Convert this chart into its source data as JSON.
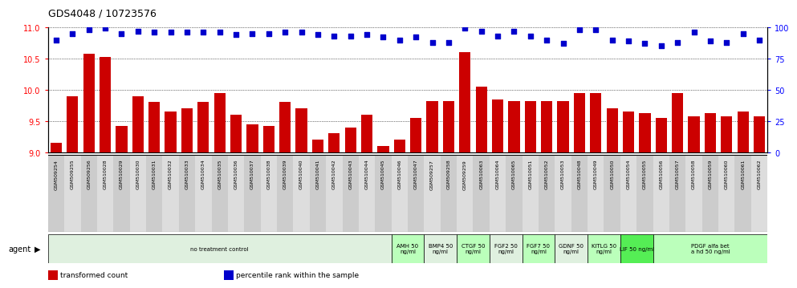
{
  "title": "GDS4048 / 10723576",
  "samples": [
    "GSM509254",
    "GSM509255",
    "GSM509256",
    "GSM510028",
    "GSM510029",
    "GSM510030",
    "GSM510031",
    "GSM510032",
    "GSM510033",
    "GSM510034",
    "GSM510035",
    "GSM510036",
    "GSM510037",
    "GSM510038",
    "GSM510039",
    "GSM510040",
    "GSM510041",
    "GSM510042",
    "GSM510043",
    "GSM510044",
    "GSM510045",
    "GSM510046",
    "GSM510047",
    "GSM509257",
    "GSM509258",
    "GSM509259",
    "GSM510063",
    "GSM510064",
    "GSM510065",
    "GSM510051",
    "GSM510052",
    "GSM510053",
    "GSM510048",
    "GSM510049",
    "GSM510050",
    "GSM510054",
    "GSM510055",
    "GSM510056",
    "GSM510057",
    "GSM510058",
    "GSM510059",
    "GSM510060",
    "GSM510061",
    "GSM510062"
  ],
  "bar_values": [
    9.15,
    9.9,
    10.58,
    10.52,
    9.42,
    9.9,
    9.8,
    9.65,
    9.7,
    9.8,
    9.95,
    9.6,
    9.45,
    9.42,
    9.8,
    9.7,
    9.2,
    9.3,
    9.4,
    9.6,
    9.1,
    9.2,
    9.55,
    9.82,
    9.82,
    10.6,
    10.05,
    9.85,
    9.82,
    9.82,
    9.82,
    9.82,
    9.95,
    9.95,
    9.7,
    9.65,
    9.62,
    9.55,
    9.95,
    9.58,
    9.62,
    9.58,
    9.65,
    9.58
  ],
  "dot_values": [
    90,
    95,
    98,
    99,
    95,
    97,
    96,
    96,
    96,
    96,
    96,
    94,
    95,
    95,
    96,
    96,
    94,
    93,
    93,
    94,
    92,
    90,
    92,
    88,
    88,
    99,
    97,
    93,
    97,
    93,
    90,
    87,
    98,
    98,
    90,
    89,
    87,
    85,
    88,
    96,
    89,
    88,
    95,
    90
  ],
  "bar_color": "#cc0000",
  "dot_color": "#0000cc",
  "ylim_left": [
    9.0,
    11.0
  ],
  "ylim_right": [
    0,
    100
  ],
  "yticks_left": [
    9.0,
    9.5,
    10.0,
    10.5,
    11.0
  ],
  "yticks_right": [
    0,
    25,
    50,
    75,
    100
  ],
  "groups": [
    {
      "label": "no treatment control",
      "start": 0,
      "end": 21,
      "color": "#dff0df"
    },
    {
      "label": "AMH 50\nng/ml",
      "start": 21,
      "end": 23,
      "color": "#bbffbb"
    },
    {
      "label": "BMP4 50\nng/ml",
      "start": 23,
      "end": 25,
      "color": "#dff0df"
    },
    {
      "label": "CTGF 50\nng/ml",
      "start": 25,
      "end": 27,
      "color": "#bbffbb"
    },
    {
      "label": "FGF2 50\nng/ml",
      "start": 27,
      "end": 29,
      "color": "#dff0df"
    },
    {
      "label": "FGF7 50\nng/ml",
      "start": 29,
      "end": 31,
      "color": "#bbffbb"
    },
    {
      "label": "GDNF 50\nng/ml",
      "start": 31,
      "end": 33,
      "color": "#dff0df"
    },
    {
      "label": "KITLG 50\nng/ml",
      "start": 33,
      "end": 35,
      "color": "#bbffbb"
    },
    {
      "label": "LIF 50 ng/ml",
      "start": 35,
      "end": 37,
      "color": "#55ee55"
    },
    {
      "label": "PDGF alfa bet\na hd 50 ng/ml",
      "start": 37,
      "end": 44,
      "color": "#bbffbb"
    }
  ],
  "agent_label": "agent",
  "legend_items": [
    {
      "label": "transformed count",
      "color": "#cc0000"
    },
    {
      "label": "percentile rank within the sample",
      "color": "#0000cc"
    }
  ],
  "tick_bg_even": "#cccccc",
  "tick_bg_odd": "#dddddd"
}
